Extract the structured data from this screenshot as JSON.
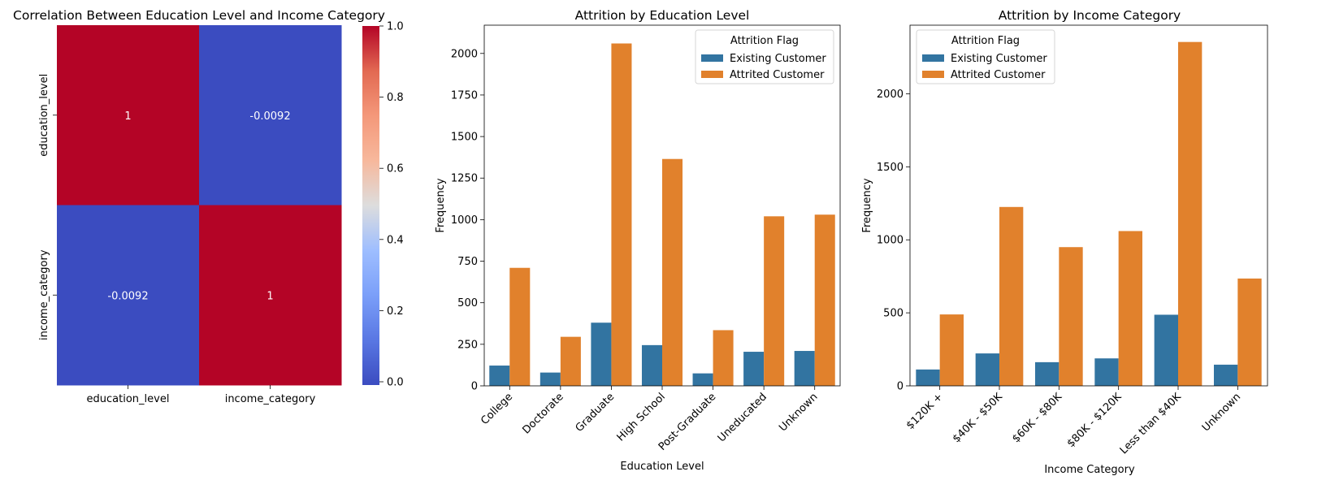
{
  "chart_data": [
    {
      "type": "heatmap",
      "title": "Correlation Between Education Level and Income Category",
      "x_labels": [
        "education_level",
        "income_category"
      ],
      "y_labels": [
        "education_level",
        "income_category"
      ],
      "values": [
        [
          1,
          -0.0092
        ],
        [
          -0.0092,
          1
        ]
      ],
      "cell_labels": [
        [
          "1",
          "-0.0092"
        ],
        [
          "-0.0092",
          "1"
        ]
      ],
      "colormap": "coolwarm",
      "colors": {
        "low": "#3b4cc0",
        "high": "#b40426"
      },
      "colorbar": {
        "range": [
          0,
          1
        ],
        "ticks": [
          "0.0",
          "0.2",
          "0.4",
          "0.6",
          "0.8",
          "1.0"
        ]
      }
    },
    {
      "type": "bar",
      "title": "Attrition by Education Level",
      "xlabel": "Education Level",
      "ylabel": "Frequency",
      "categories": [
        "College",
        "Doctorate",
        "Graduate",
        "High School",
        "Post-Graduate",
        "Uneducated",
        "Unknown"
      ],
      "series": [
        {
          "name": "Existing Customer",
          "color": "#3274a1",
          "values": [
            122,
            80,
            380,
            245,
            75,
            205,
            210
          ]
        },
        {
          "name": "Attrited Customer",
          "color": "#e1812c",
          "values": [
            710,
            295,
            2060,
            1365,
            335,
            1020,
            1030
          ]
        }
      ],
      "ylim": [
        0,
        2170
      ],
      "yticks": [
        0,
        250,
        500,
        750,
        1000,
        1250,
        1500,
        1750,
        2000
      ],
      "legend": {
        "title": "Attrition Flag",
        "position": "top-right"
      }
    },
    {
      "type": "bar",
      "title": "Attrition by Income Category",
      "xlabel": "Income Category",
      "ylabel": "Frequency",
      "categories": [
        "$120K +",
        "$40K - $50K",
        "$60K - $80K",
        "$80K - $120K",
        "Less than $40K",
        "Unknown"
      ],
      "series": [
        {
          "name": "Existing Customer",
          "color": "#3274a1",
          "values": [
            112,
            222,
            162,
            188,
            487,
            145
          ]
        },
        {
          "name": "Attrited Customer",
          "color": "#e1812c",
          "values": [
            489,
            1225,
            950,
            1060,
            2355,
            735
          ]
        }
      ],
      "ylim": [
        0,
        2470
      ],
      "yticks": [
        0,
        500,
        1000,
        1500,
        2000
      ],
      "legend": {
        "title": "Attrition Flag",
        "position": "top-left"
      }
    }
  ]
}
